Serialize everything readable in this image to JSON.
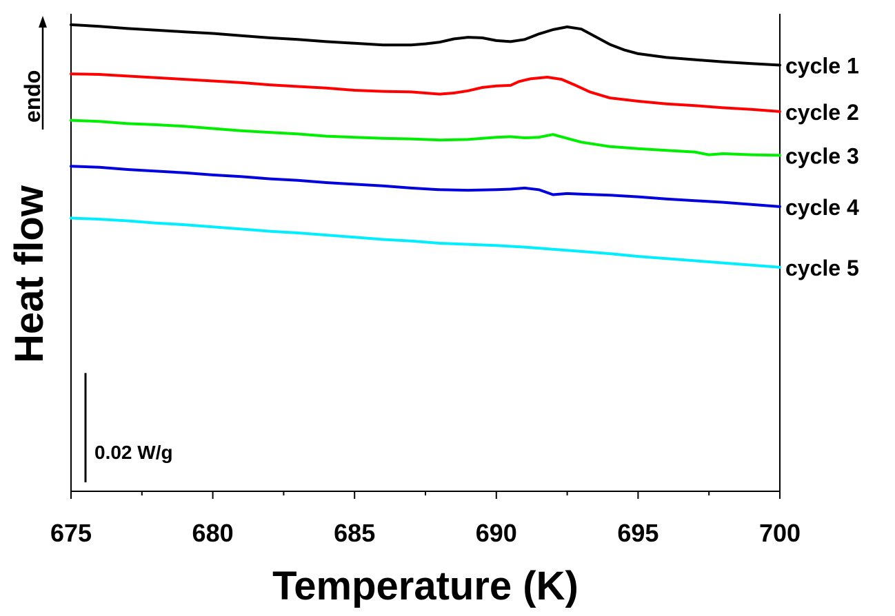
{
  "chart_data": {
    "type": "line",
    "xlabel": "Temperature (K)",
    "ylabel": "Heat flow",
    "endo_label": "endo",
    "scale_bar_label": "0.02 W/g",
    "scale_bar_value": 0.02,
    "xlim": [
      675,
      700
    ],
    "ylim": [
      -0.0127,
      0.0747
    ],
    "x_ticks": [
      "675",
      "680",
      "685",
      "690",
      "695",
      "700"
    ],
    "grid": false,
    "series": [
      {
        "name": "cycle 1",
        "color": "#000000",
        "points": [
          [
            675,
            0.0727
          ],
          [
            676,
            0.0724
          ],
          [
            677,
            0.072
          ],
          [
            678,
            0.0717
          ],
          [
            679,
            0.0714
          ],
          [
            680,
            0.0711
          ],
          [
            681,
            0.0707
          ],
          [
            682,
            0.0703
          ],
          [
            683,
            0.07
          ],
          [
            684,
            0.0696
          ],
          [
            685,
            0.0693
          ],
          [
            686,
            0.069
          ],
          [
            687,
            0.069
          ],
          [
            687.5,
            0.0692
          ],
          [
            688,
            0.0695
          ],
          [
            688.5,
            0.0701
          ],
          [
            689,
            0.0704
          ],
          [
            689.5,
            0.0703
          ],
          [
            690,
            0.0698
          ],
          [
            690.5,
            0.0696
          ],
          [
            691,
            0.07
          ],
          [
            691.5,
            0.071
          ],
          [
            692,
            0.0718
          ],
          [
            692.5,
            0.0723
          ],
          [
            693,
            0.0719
          ],
          [
            693.5,
            0.0705
          ],
          [
            694,
            0.0691
          ],
          [
            694.5,
            0.0681
          ],
          [
            695,
            0.0674
          ],
          [
            696,
            0.0667
          ],
          [
            697,
            0.0663
          ],
          [
            698,
            0.0659
          ],
          [
            699,
            0.0656
          ],
          [
            700,
            0.0653
          ]
        ]
      },
      {
        "name": "cycle 2",
        "color": "#ff0000",
        "points": [
          [
            675,
            0.0637
          ],
          [
            676,
            0.0636
          ],
          [
            677,
            0.0633
          ],
          [
            678,
            0.063
          ],
          [
            679,
            0.0627
          ],
          [
            680,
            0.0624
          ],
          [
            681,
            0.0621
          ],
          [
            682,
            0.0617
          ],
          [
            683,
            0.0614
          ],
          [
            684,
            0.0611
          ],
          [
            685,
            0.0607
          ],
          [
            686,
            0.0605
          ],
          [
            687,
            0.0604
          ],
          [
            688,
            0.06
          ],
          [
            688.5,
            0.0602
          ],
          [
            689,
            0.0606
          ],
          [
            689.5,
            0.0612
          ],
          [
            690,
            0.0615
          ],
          [
            690.5,
            0.0616
          ],
          [
            690.8,
            0.0623
          ],
          [
            691.2,
            0.0628
          ],
          [
            691.8,
            0.0631
          ],
          [
            692.3,
            0.0627
          ],
          [
            692.8,
            0.0616
          ],
          [
            693.3,
            0.0604
          ],
          [
            694,
            0.0593
          ],
          [
            695,
            0.0587
          ],
          [
            696,
            0.0582
          ],
          [
            697,
            0.0579
          ],
          [
            698,
            0.0575
          ],
          [
            699,
            0.0572
          ],
          [
            700,
            0.0568
          ]
        ]
      },
      {
        "name": "cycle 3",
        "color": "#00ee00",
        "points": [
          [
            675,
            0.0552
          ],
          [
            676,
            0.055
          ],
          [
            677,
            0.0546
          ],
          [
            678,
            0.0544
          ],
          [
            679,
            0.0541
          ],
          [
            680,
            0.0537
          ],
          [
            681,
            0.0533
          ],
          [
            682,
            0.053
          ],
          [
            683,
            0.0527
          ],
          [
            684,
            0.0523
          ],
          [
            685,
            0.0521
          ],
          [
            686,
            0.0519
          ],
          [
            687,
            0.0518
          ],
          [
            688,
            0.0516
          ],
          [
            689,
            0.0517
          ],
          [
            690,
            0.0521
          ],
          [
            690.5,
            0.0522
          ],
          [
            691,
            0.052
          ],
          [
            691.5,
            0.0521
          ],
          [
            692,
            0.0526
          ],
          [
            692.5,
            0.0519
          ],
          [
            693,
            0.0512
          ],
          [
            694,
            0.0504
          ],
          [
            695,
            0.05
          ],
          [
            696,
            0.0497
          ],
          [
            697,
            0.0494
          ],
          [
            697.5,
            0.0489
          ],
          [
            698,
            0.0491
          ],
          [
            699,
            0.0489
          ],
          [
            700,
            0.0488
          ]
        ]
      },
      {
        "name": "cycle 4",
        "color": "#0000dd",
        "points": [
          [
            675,
            0.0468
          ],
          [
            676,
            0.0466
          ],
          [
            677,
            0.0462
          ],
          [
            678,
            0.0459
          ],
          [
            679,
            0.0456
          ],
          [
            680,
            0.0452
          ],
          [
            681,
            0.0449
          ],
          [
            682,
            0.0445
          ],
          [
            683,
            0.0442
          ],
          [
            684,
            0.0438
          ],
          [
            685,
            0.0435
          ],
          [
            686,
            0.0432
          ],
          [
            687,
            0.0428
          ],
          [
            688,
            0.0425
          ],
          [
            689,
            0.0424
          ],
          [
            690,
            0.0425
          ],
          [
            690.5,
            0.0426
          ],
          [
            691,
            0.0428
          ],
          [
            691.5,
            0.0425
          ],
          [
            692,
            0.0416
          ],
          [
            692.5,
            0.0418
          ],
          [
            693,
            0.0417
          ],
          [
            694,
            0.0415
          ],
          [
            695,
            0.0412
          ],
          [
            696,
            0.0408
          ],
          [
            697,
            0.0405
          ],
          [
            698,
            0.0402
          ],
          [
            699,
            0.0398
          ],
          [
            700,
            0.0394
          ]
        ]
      },
      {
        "name": "cycle 5",
        "color": "#00eeff",
        "points": [
          [
            675,
            0.0373
          ],
          [
            676,
            0.0371
          ],
          [
            677,
            0.0368
          ],
          [
            678,
            0.0364
          ],
          [
            679,
            0.0361
          ],
          [
            680,
            0.0357
          ],
          [
            681,
            0.0353
          ],
          [
            682,
            0.0349
          ],
          [
            683,
            0.0346
          ],
          [
            684,
            0.0342
          ],
          [
            685,
            0.0338
          ],
          [
            686,
            0.0334
          ],
          [
            687,
            0.0331
          ],
          [
            688,
            0.0327
          ],
          [
            689,
            0.0325
          ],
          [
            690,
            0.0323
          ],
          [
            691,
            0.032
          ],
          [
            692,
            0.0316
          ],
          [
            693,
            0.0312
          ],
          [
            694,
            0.0308
          ],
          [
            695,
            0.0303
          ],
          [
            696,
            0.0299
          ],
          [
            697,
            0.0295
          ],
          [
            698,
            0.0291
          ],
          [
            699,
            0.0287
          ],
          [
            700,
            0.0283
          ]
        ]
      }
    ]
  }
}
